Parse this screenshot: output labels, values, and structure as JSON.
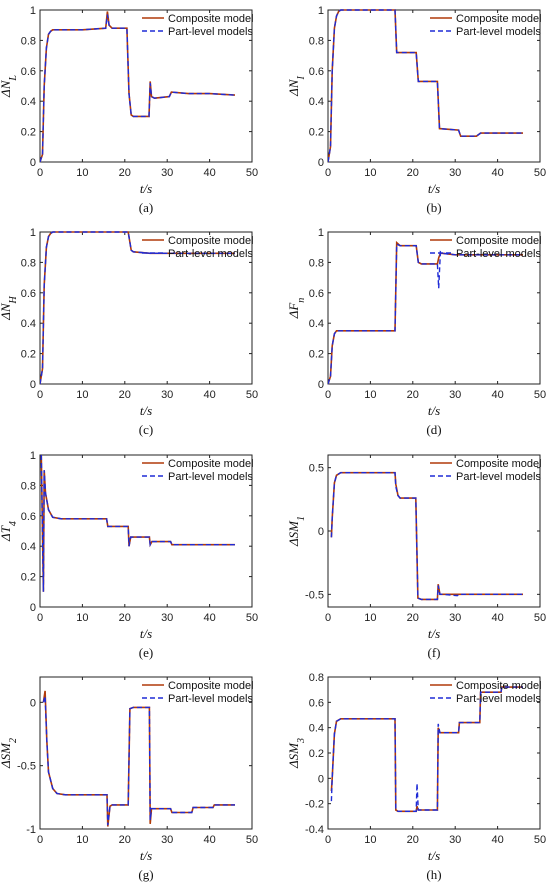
{
  "colors": {
    "composite": "#b03a0a",
    "part": "#1f2bd6",
    "axis": "#222222"
  },
  "chart_data": [
    {
      "type": "line",
      "caption": "(a)",
      "ylabel": "ΔN_L",
      "xlabel": "t/s",
      "xlim": [
        0,
        50
      ],
      "ylim": [
        0,
        1
      ],
      "xticks": [
        "0",
        "10",
        "20",
        "30",
        "40",
        "50"
      ],
      "yticks": [
        "0",
        "0.2",
        "0.4",
        "0.6",
        "0.8",
        "1"
      ],
      "legend": [
        "Composite model",
        "Part-level models"
      ],
      "legend_loc": "top-right",
      "series": [
        {
          "name": "Composite model",
          "x": [
            0,
            0.6,
            1.0,
            1.5,
            2.0,
            2.5,
            3.0,
            5.0,
            10.0,
            15.5,
            15.9,
            16.3,
            17.0,
            20.5,
            21.0,
            21.5,
            22.0,
            24.0,
            25.7,
            26.0,
            26.3,
            27.0,
            30.5,
            31.0,
            35.0,
            40.0,
            46.0
          ],
          "y": [
            0,
            0.05,
            0.5,
            0.75,
            0.84,
            0.86,
            0.87,
            0.87,
            0.87,
            0.88,
            0.99,
            0.9,
            0.88,
            0.88,
            0.45,
            0.31,
            0.3,
            0.3,
            0.3,
            0.53,
            0.43,
            0.42,
            0.43,
            0.46,
            0.45,
            0.45,
            0.44
          ]
        },
        {
          "name": "Part-level models",
          "x": [
            0,
            0.6,
            1.0,
            1.5,
            2.0,
            2.5,
            3.0,
            5.0,
            10.0,
            15.5,
            15.9,
            16.3,
            17.0,
            20.5,
            21.0,
            21.5,
            22.0,
            24.0,
            25.7,
            26.0,
            26.3,
            27.0,
            30.5,
            31.0,
            35.0,
            40.0,
            46.0
          ],
          "y": [
            0,
            0.05,
            0.5,
            0.75,
            0.84,
            0.86,
            0.87,
            0.87,
            0.87,
            0.88,
            0.97,
            0.9,
            0.88,
            0.88,
            0.45,
            0.31,
            0.3,
            0.3,
            0.3,
            0.52,
            0.43,
            0.42,
            0.43,
            0.46,
            0.45,
            0.45,
            0.44
          ]
        }
      ]
    },
    {
      "type": "line",
      "caption": "(b)",
      "ylabel": "ΔN_I",
      "xlabel": "t/s",
      "xlim": [
        0,
        50
      ],
      "ylim": [
        0,
        1
      ],
      "xticks": [
        "0",
        "10",
        "20",
        "30",
        "40",
        "50"
      ],
      "yticks": [
        "0",
        "0.2",
        "0.4",
        "0.6",
        "0.8",
        "1"
      ],
      "legend": [
        "Composite model",
        "Part-level models"
      ],
      "legend_loc": "top-right",
      "series": [
        {
          "name": "Composite model",
          "x": [
            0,
            0.6,
            1.0,
            1.5,
            2.0,
            2.5,
            3.0,
            5.0,
            15.8,
            16.2,
            18.0,
            20.8,
            21.3,
            25.8,
            26.3,
            30.8,
            31.3,
            35.0,
            36.0,
            40.0,
            46.0
          ],
          "y": [
            0,
            0.1,
            0.6,
            0.88,
            0.96,
            0.99,
            1.0,
            1.0,
            1.0,
            0.72,
            0.72,
            0.72,
            0.53,
            0.53,
            0.22,
            0.21,
            0.17,
            0.17,
            0.19,
            0.19,
            0.19
          ]
        },
        {
          "name": "Part-level models",
          "x": [
            0,
            0.6,
            1.0,
            1.5,
            2.0,
            2.5,
            3.0,
            5.0,
            15.8,
            16.2,
            18.0,
            20.8,
            21.3,
            25.8,
            26.3,
            30.8,
            31.3,
            35.0,
            36.0,
            40.0,
            46.0
          ],
          "y": [
            0,
            0.1,
            0.6,
            0.88,
            0.96,
            0.99,
            1.0,
            1.0,
            1.0,
            0.72,
            0.72,
            0.72,
            0.53,
            0.53,
            0.22,
            0.21,
            0.17,
            0.17,
            0.19,
            0.19,
            0.19
          ]
        }
      ]
    },
    {
      "type": "line",
      "caption": "(c)",
      "ylabel": "ΔN_H",
      "xlabel": "t/s",
      "xlim": [
        0,
        50
      ],
      "ylim": [
        0,
        1
      ],
      "xticks": [
        "0",
        "10",
        "20",
        "30",
        "40",
        "50"
      ],
      "yticks": [
        "0",
        "0.2",
        "0.4",
        "0.6",
        "0.8",
        "1"
      ],
      "legend": [
        "Composite model",
        "Part-level models"
      ],
      "legend_loc": "top-right",
      "series": [
        {
          "name": "Composite model",
          "x": [
            0,
            0.6,
            1.0,
            1.5,
            2.0,
            2.5,
            3.0,
            5.0,
            10.0,
            20.8,
            21.5,
            22.0,
            26.0,
            30.0,
            46.0
          ],
          "y": [
            0,
            0.1,
            0.65,
            0.9,
            0.97,
            0.99,
            1.0,
            1.0,
            1.0,
            1.0,
            0.88,
            0.87,
            0.86,
            0.86,
            0.86
          ]
        },
        {
          "name": "Part-level models",
          "x": [
            0,
            0.6,
            1.0,
            1.5,
            2.0,
            2.5,
            3.0,
            5.0,
            10.0,
            20.8,
            21.5,
            22.0,
            26.0,
            30.0,
            46.0
          ],
          "y": [
            0,
            0.1,
            0.65,
            0.9,
            0.97,
            0.99,
            1.0,
            1.0,
            1.0,
            1.0,
            0.88,
            0.87,
            0.86,
            0.86,
            0.86
          ]
        }
      ]
    },
    {
      "type": "line",
      "caption": "(d)",
      "ylabel": "ΔF_n",
      "xlabel": "t/s",
      "xlim": [
        0,
        50
      ],
      "ylim": [
        0,
        1
      ],
      "xticks": [
        "0",
        "10",
        "20",
        "30",
        "40",
        "50"
      ],
      "yticks": [
        "0",
        "0.2",
        "0.4",
        "0.6",
        "0.8",
        "1"
      ],
      "legend": [
        "Composite model",
        "Part-level models"
      ],
      "legend_loc": "top-right",
      "series": [
        {
          "name": "Composite model",
          "x": [
            0,
            0.6,
            1.0,
            1.5,
            2.0,
            3.0,
            5.0,
            15.8,
            16.2,
            17.0,
            20.8,
            21.3,
            22.0,
            25.8,
            26.1,
            26.5,
            27.0,
            30.0,
            46.0
          ],
          "y": [
            0,
            0.05,
            0.25,
            0.33,
            0.35,
            0.35,
            0.35,
            0.35,
            0.93,
            0.91,
            0.91,
            0.8,
            0.79,
            0.79,
            0.83,
            0.86,
            0.86,
            0.85,
            0.85
          ]
        },
        {
          "name": "Part-level models",
          "x": [
            0,
            0.6,
            1.0,
            1.5,
            2.0,
            3.0,
            5.0,
            15.8,
            16.2,
            17.0,
            20.8,
            21.3,
            22.0,
            25.8,
            26.1,
            26.5,
            27.0,
            30.0,
            46.0
          ],
          "y": [
            0,
            0.05,
            0.25,
            0.33,
            0.35,
            0.35,
            0.35,
            0.35,
            0.92,
            0.91,
            0.91,
            0.8,
            0.79,
            0.79,
            0.63,
            0.87,
            0.86,
            0.85,
            0.85
          ]
        }
      ]
    },
    {
      "type": "line",
      "caption": "(e)",
      "ylabel": "ΔT_4",
      "xlabel": "t/s",
      "xlim": [
        0,
        50
      ],
      "ylim": [
        0,
        1
      ],
      "xticks": [
        "0",
        "10",
        "20",
        "30",
        "40",
        "50"
      ],
      "yticks": [
        "0",
        "0.2",
        "0.4",
        "0.6",
        "0.8",
        "1"
      ],
      "legend": [
        "Composite model",
        "Part-level models"
      ],
      "legend_loc": "top-right",
      "series": [
        {
          "name": "Composite model",
          "x": [
            0.3,
            0.8,
            1.0,
            1.3,
            2.0,
            3.0,
            5.0,
            15.7,
            16.0,
            20.8,
            21.0,
            21.4,
            25.8,
            26.0,
            26.4,
            30.8,
            31.1,
            35.0,
            46.0
          ],
          "y": [
            1.0,
            0.1,
            0.9,
            0.75,
            0.64,
            0.59,
            0.58,
            0.58,
            0.53,
            0.53,
            0.4,
            0.46,
            0.46,
            0.41,
            0.43,
            0.43,
            0.41,
            0.41,
            0.41
          ]
        },
        {
          "name": "Part-level models",
          "x": [
            0.3,
            0.8,
            1.0,
            1.3,
            2.0,
            3.0,
            5.0,
            15.7,
            16.0,
            20.8,
            21.0,
            21.4,
            25.8,
            26.0,
            26.4,
            30.8,
            31.1,
            35.0,
            46.0
          ],
          "y": [
            1.0,
            0.1,
            0.9,
            0.75,
            0.64,
            0.59,
            0.58,
            0.58,
            0.53,
            0.53,
            0.4,
            0.46,
            0.46,
            0.41,
            0.43,
            0.43,
            0.41,
            0.41,
            0.41
          ]
        }
      ]
    },
    {
      "type": "line",
      "caption": "(f)",
      "ylabel": "ΔSM_1",
      "xlabel": "t/s",
      "xlim": [
        0,
        50
      ],
      "ylim": [
        -0.6,
        0.6
      ],
      "xticks": [
        "0",
        "10",
        "20",
        "30",
        "40",
        "50"
      ],
      "yticks": [
        "-0.5",
        "0",
        "0.5"
      ],
      "legend": [
        "Composite model",
        "Part-level models"
      ],
      "legend_loc": "top-right",
      "series": [
        {
          "name": "Composite model",
          "x": [
            0.8,
            1.0,
            1.5,
            2.0,
            3.0,
            5.0,
            15.8,
            16.0,
            16.5,
            17.0,
            20.7,
            21.2,
            22.0,
            25.8,
            26.0,
            26.4,
            27.0,
            30.5,
            31.0,
            46.0
          ],
          "y": [
            -0.05,
            0.1,
            0.38,
            0.44,
            0.46,
            0.46,
            0.46,
            0.37,
            0.28,
            0.26,
            0.26,
            -0.53,
            -0.54,
            -0.54,
            -0.42,
            -0.5,
            -0.5,
            -0.5,
            -0.5,
            -0.5
          ]
        },
        {
          "name": "Part-level models",
          "x": [
            0.8,
            1.0,
            1.5,
            2.0,
            3.0,
            5.0,
            15.8,
            16.0,
            16.5,
            17.0,
            20.7,
            21.2,
            22.0,
            25.8,
            26.0,
            26.4,
            27.0,
            30.5,
            31.0,
            46.0
          ],
          "y": [
            -0.05,
            0.1,
            0.38,
            0.44,
            0.46,
            0.46,
            0.46,
            0.35,
            0.28,
            0.26,
            0.26,
            -0.53,
            -0.54,
            -0.54,
            -0.43,
            -0.5,
            -0.5,
            -0.51,
            -0.5,
            -0.5
          ]
        }
      ]
    },
    {
      "type": "line",
      "caption": "(g)",
      "ylabel": "ΔSM_2",
      "xlabel": "t/s",
      "xlim": [
        0,
        50
      ],
      "ylim": [
        -1.0,
        0.2
      ],
      "xticks": [
        "0",
        "10",
        "20",
        "30",
        "40",
        "50"
      ],
      "yticks": [
        "-1",
        "-0.5",
        "0"
      ],
      "legend": [
        "Composite model",
        "Part-level models"
      ],
      "legend_loc": "top-right",
      "series": [
        {
          "name": "Composite model",
          "x": [
            0.8,
            1.2,
            1.6,
            2.0,
            3.0,
            4.0,
            6.0,
            15.8,
            16.0,
            16.5,
            17.0,
            20.8,
            21.2,
            22.0,
            25.8,
            26.0,
            26.3,
            27.0,
            30.8,
            31.1,
            35.8,
            36.1,
            40.8,
            41.1,
            46.0
          ],
          "y": [
            0.0,
            0.09,
            -0.3,
            -0.55,
            -0.68,
            -0.72,
            -0.73,
            -0.73,
            -0.98,
            -0.82,
            -0.81,
            -0.81,
            -0.05,
            -0.04,
            -0.04,
            -0.96,
            -0.84,
            -0.84,
            -0.84,
            -0.87,
            -0.87,
            -0.83,
            -0.83,
            -0.81,
            -0.81
          ]
        },
        {
          "name": "Part-level models",
          "x": [
            0.8,
            1.2,
            1.6,
            2.0,
            3.0,
            4.0,
            6.0,
            15.8,
            16.0,
            16.5,
            17.0,
            20.8,
            21.2,
            22.0,
            25.8,
            26.0,
            26.3,
            27.0,
            30.8,
            31.1,
            35.8,
            36.1,
            40.8,
            41.1,
            46.0
          ],
          "y": [
            0.0,
            0.05,
            -0.3,
            -0.55,
            -0.68,
            -0.72,
            -0.73,
            -0.73,
            -0.97,
            -0.82,
            -0.81,
            -0.81,
            -0.05,
            -0.04,
            -0.04,
            -0.93,
            -0.84,
            -0.84,
            -0.84,
            -0.87,
            -0.87,
            -0.83,
            -0.83,
            -0.81,
            -0.81
          ]
        }
      ]
    },
    {
      "type": "line",
      "caption": "(h)",
      "ylabel": "ΔSM_3",
      "xlabel": "t/s",
      "xlim": [
        0,
        50
      ],
      "ylim": [
        -0.4,
        0.8
      ],
      "xticks": [
        "0",
        "10",
        "20",
        "30",
        "40",
        "50"
      ],
      "yticks": [
        "-0.4",
        "-0.2",
        "0",
        "0.2",
        "0.4",
        "0.6",
        "0.8"
      ],
      "legend": [
        "Composite model",
        "Part-level models"
      ],
      "legend_loc": "top-right",
      "series": [
        {
          "name": "Composite model",
          "x": [
            0.8,
            1.0,
            1.5,
            2.0,
            3.0,
            5.0,
            15.8,
            16.0,
            16.5,
            20.8,
            21.0,
            21.3,
            25.8,
            26.0,
            26.4,
            30.8,
            31.0,
            35.8,
            36.0,
            40.8,
            41.0,
            46.0
          ],
          "y": [
            -0.1,
            0.0,
            0.35,
            0.45,
            0.47,
            0.47,
            0.47,
            -0.25,
            -0.26,
            -0.26,
            -0.22,
            -0.25,
            -0.25,
            0.4,
            0.36,
            0.36,
            0.44,
            0.44,
            0.68,
            0.68,
            0.72,
            0.72
          ]
        },
        {
          "name": "Part-level models",
          "x": [
            0.8,
            1.0,
            1.5,
            2.0,
            3.0,
            5.0,
            15.8,
            16.0,
            16.5,
            20.8,
            21.0,
            21.3,
            25.8,
            26.0,
            26.4,
            30.8,
            31.0,
            35.8,
            36.0,
            40.8,
            41.0,
            46.0
          ],
          "y": [
            -0.18,
            0.0,
            0.35,
            0.45,
            0.47,
            0.47,
            0.47,
            -0.25,
            -0.26,
            -0.26,
            -0.04,
            -0.25,
            -0.25,
            0.43,
            0.36,
            0.36,
            0.44,
            0.44,
            0.68,
            0.68,
            0.72,
            0.72
          ]
        }
      ]
    }
  ]
}
